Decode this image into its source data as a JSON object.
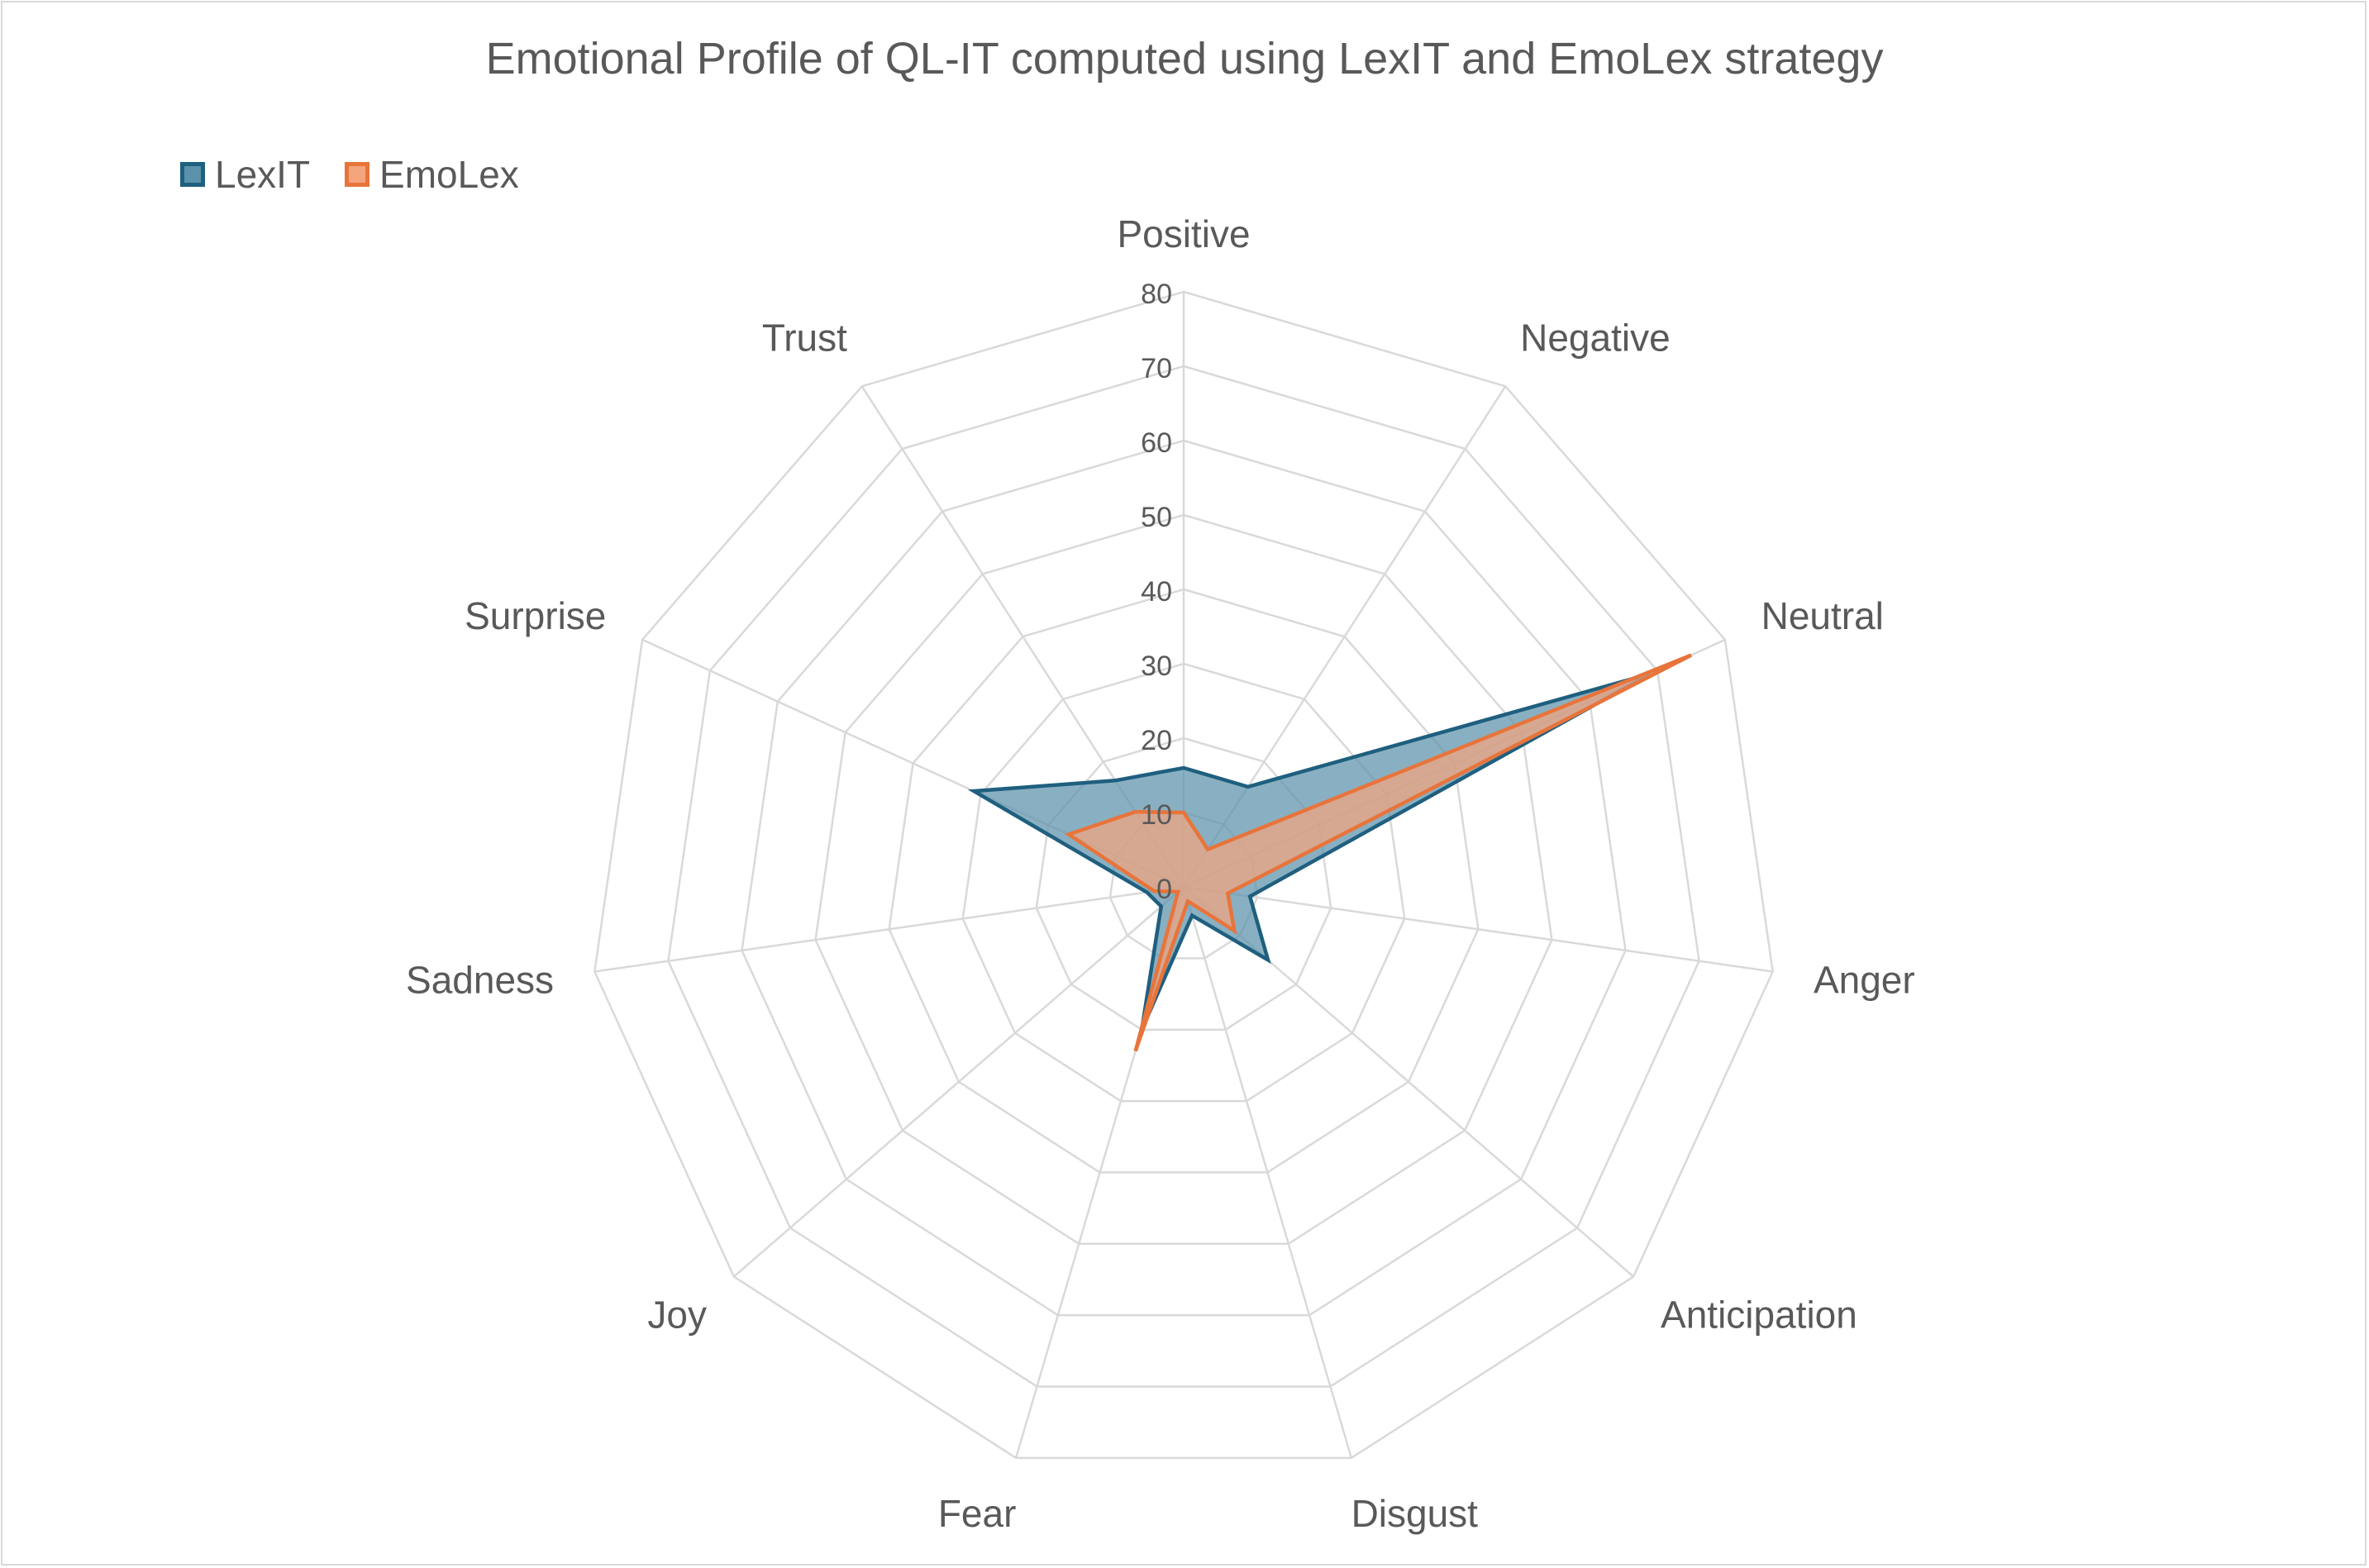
{
  "chart_data": {
    "type": "radar",
    "title": "Emotional Profile of QL-IT computed using LexIT and EmoLex strategy",
    "categories": [
      "Positive",
      "Negative",
      "Neutral",
      "Anger",
      "Anticipation",
      "Disgust",
      "Fear",
      "Joy",
      "Sadness",
      "Surprise",
      "Trust"
    ],
    "rlim": [
      0,
      80
    ],
    "r_ticks": [
      "0",
      "10",
      "20",
      "30",
      "40",
      "50",
      "60",
      "70",
      "80"
    ],
    "grid": true,
    "legend_position": "top-left",
    "series": [
      {
        "name": "LexIT",
        "values": [
          16,
          16,
          69,
          9,
          15,
          4,
          20,
          4,
          5,
          31,
          17
        ],
        "line_color": "#1f5f7f",
        "fill_color": "#5b91ab"
      },
      {
        "name": "EmoLex",
        "values": [
          10,
          6,
          75,
          6,
          9,
          2,
          23,
          1,
          4,
          17,
          12
        ],
        "line_color": "#e8743b",
        "fill_color": "#f4a57e"
      }
    ]
  }
}
